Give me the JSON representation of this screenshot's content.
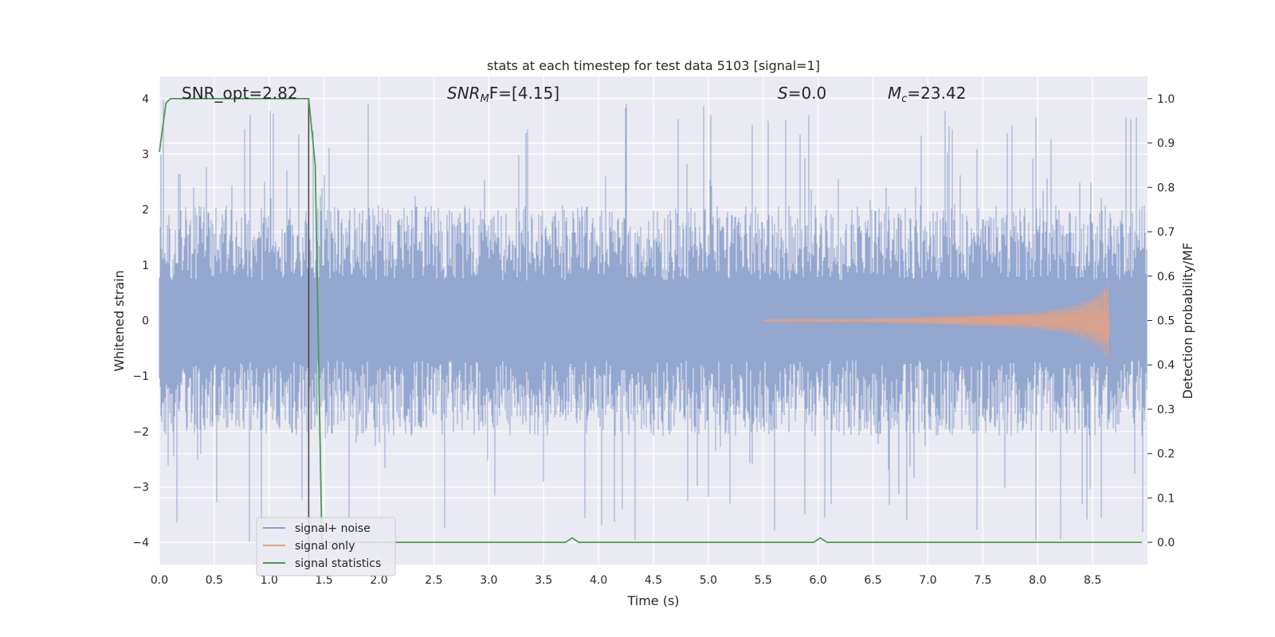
{
  "chart_data": {
    "type": "line",
    "title": "stats at each timestep for test data 5103 [signal=1]",
    "xlabel": "Time (s)",
    "ylabel": "Whitened strain",
    "y2label": "Detection probability/MF",
    "xlim": [
      0,
      9.0
    ],
    "ylim": [
      -4.4,
      4.4
    ],
    "y2lim": [
      -0.05,
      1.05
    ],
    "x_ticks": [
      "0.0",
      "0.5",
      "1.0",
      "1.5",
      "2.0",
      "2.5",
      "3.0",
      "3.5",
      "4.0",
      "4.5",
      "5.0",
      "5.5",
      "6.0",
      "6.5",
      "7.0",
      "7.5",
      "8.0",
      "8.5"
    ],
    "y_ticks": [
      "−4",
      "−3",
      "−2",
      "−1",
      "0",
      "1",
      "2",
      "3",
      "4"
    ],
    "y2_ticks": [
      "0.0",
      "0.1",
      "0.2",
      "0.3",
      "0.4",
      "0.5",
      "0.6",
      "0.7",
      "0.8",
      "0.9",
      "1.0"
    ],
    "grid": true,
    "annotations": {
      "snr_opt": "SNR_opt=2.82",
      "snr_mf": "SNR",
      "snr_mf_sub": "M",
      "snr_mf_rest": "F=[4.15]",
      "s_stat_var": "S",
      "s_stat_rest": "=0.0",
      "mc_var": "M",
      "mc_sub": "c",
      "mc_rest": "=23.42"
    },
    "vertical_line_x": 1.36,
    "legend": {
      "position": "lower left",
      "entries": [
        "signal+ noise",
        "signal only",
        "signal statistics"
      ]
    },
    "series": [
      {
        "name": "signal+ noise",
        "color": "#8fa3cc",
        "axis": "left",
        "description_envelope": {
          "typical_abs": 1.6,
          "peak_abs": 4.0
        }
      },
      {
        "name": "signal only",
        "color": "#e0a286",
        "axis": "left",
        "x": [
          5.5,
          6.0,
          6.5,
          7.0,
          7.5,
          8.0,
          8.3,
          8.5,
          8.6,
          8.65
        ],
        "amplitude": [
          0.01,
          0.02,
          0.03,
          0.06,
          0.1,
          0.15,
          0.25,
          0.4,
          0.6,
          0.7
        ]
      },
      {
        "name": "signal statistics",
        "color": "#4c9a55",
        "axis": "right",
        "x": [
          0.0,
          0.06,
          0.1,
          1.36,
          1.42,
          1.48,
          1.56,
          3.7,
          3.76,
          3.82,
          5.96,
          6.02,
          6.08,
          8.95
        ],
        "y": [
          0.88,
          0.99,
          1.0,
          1.0,
          0.85,
          0.0,
          0.0,
          0.0,
          0.01,
          0.0,
          0.0,
          0.01,
          0.0,
          0.0
        ]
      }
    ],
    "colors": {
      "background": "#eaeaf2",
      "grid": "#ffffff",
      "vline": "#4a4a4a"
    }
  }
}
